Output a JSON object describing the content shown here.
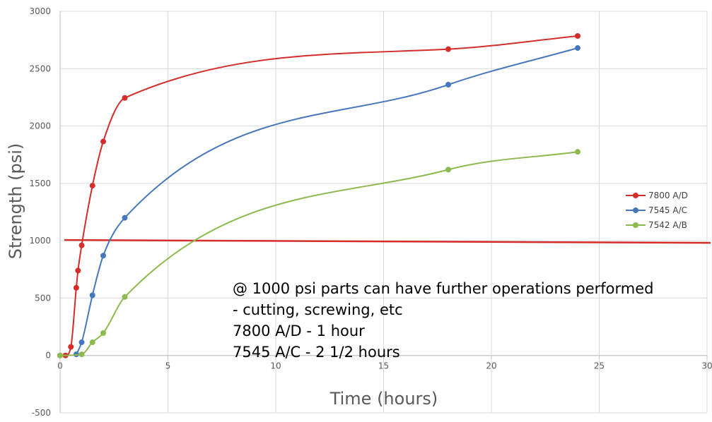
{
  "chart_data": {
    "type": "line",
    "title": "",
    "xlabel": "Time (hours)",
    "ylabel": "Strength (psi)",
    "xlim": [
      0,
      30
    ],
    "ylim": [
      -500,
      3000
    ],
    "x_ticks": [
      0,
      5,
      10,
      15,
      20,
      25,
      30
    ],
    "y_ticks": [
      -500,
      0,
      500,
      1000,
      1500,
      2000,
      2500,
      3000
    ],
    "grid": true,
    "legend_position": "right",
    "series": [
      {
        "name": "7800 A/D",
        "color": "#d42d2a",
        "points": [
          [
            0,
            0
          ],
          [
            0.25,
            0
          ],
          [
            0.5,
            75
          ],
          [
            0.75,
            590
          ],
          [
            0.83,
            740
          ],
          [
            1,
            960
          ],
          [
            1.5,
            1480
          ],
          [
            2,
            1865
          ],
          [
            3,
            2245
          ],
          [
            18,
            2670
          ],
          [
            24,
            2785
          ]
        ]
      },
      {
        "name": "7545 A/C",
        "color": "#4677be",
        "points": [
          [
            0.75,
            10
          ],
          [
            1,
            115
          ],
          [
            1.5,
            525
          ],
          [
            2,
            870
          ],
          [
            3,
            1200
          ],
          [
            18,
            2360
          ],
          [
            24,
            2680
          ]
        ]
      },
      {
        "name": "7542 A/B",
        "color": "#8cba4d",
        "points": [
          [
            0,
            0
          ],
          [
            1,
            10
          ],
          [
            1.5,
            115
          ],
          [
            2,
            195
          ],
          [
            3,
            510
          ],
          [
            18,
            1620
          ],
          [
            24,
            1775
          ]
        ]
      }
    ],
    "reference_line": {
      "y": 1000,
      "color": "#d42d2a"
    },
    "annotation_lines": [
      "@ 1000 psi parts can have further operations performed",
      "- cutting, screwing, etc",
      "7800 A/D - 1 hour",
      "7545 A/C - 2 1/2 hours"
    ]
  }
}
